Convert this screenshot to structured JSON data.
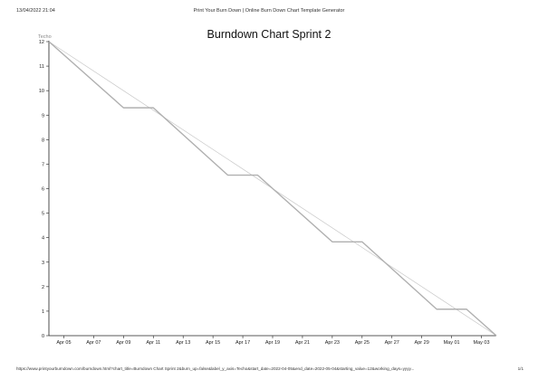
{
  "print_header": {
    "date": "13/04/2022 21:04",
    "title": "Print Your Burn Down | Online Burn Down Chart Template Generator"
  },
  "print_footer": {
    "url": "https://www.printyourburndown.com/burndown.html?chart_title=Burndown Chart Sprint 2&burn_up=false&label_y_axis=Techo&start_date=2022-04-05&end_date=2022-05-04&starting_value=12&working_days=yyyy...",
    "page": "1/1"
  },
  "chart_data": {
    "type": "line",
    "title": "Burndown Chart Sprint 2",
    "ylabel": "Techo",
    "xlabel": "",
    "ylim": [
      0,
      12
    ],
    "yticks": [
      0,
      1,
      2,
      3,
      4,
      5,
      6,
      7,
      8,
      9,
      10,
      11,
      12
    ],
    "x_start": "2022-04-04",
    "x_end": "2022-05-04",
    "xticks": [
      "Apr 05",
      "Apr 07",
      "Apr 09",
      "Apr 11",
      "Apr 13",
      "Apr 15",
      "Apr 17",
      "Apr 19",
      "Apr 21",
      "Apr 23",
      "Apr 25",
      "Apr 27",
      "Apr 29",
      "May 01",
      "May 03"
    ],
    "xtick_dates": [
      "2022-04-05",
      "2022-04-07",
      "2022-04-09",
      "2022-04-11",
      "2022-04-13",
      "2022-04-15",
      "2022-04-17",
      "2022-04-19",
      "2022-04-21",
      "2022-04-23",
      "2022-04-25",
      "2022-04-27",
      "2022-04-29",
      "2022-05-01",
      "2022-05-03"
    ],
    "series": [
      {
        "role": "ideal",
        "color": "#c8c8c8",
        "points": [
          [
            "2022-04-04",
            12
          ],
          [
            "2022-05-04",
            0
          ]
        ]
      },
      {
        "role": "actual",
        "color": "#b0b0b0",
        "points": [
          [
            "2022-04-04",
            12
          ],
          [
            "2022-04-09",
            9.3
          ],
          [
            "2022-04-11",
            9.3
          ],
          [
            "2022-04-16",
            6.55
          ],
          [
            "2022-04-18",
            6.55
          ],
          [
            "2022-04-23",
            3.83
          ],
          [
            "2022-04-25",
            3.83
          ],
          [
            "2022-04-30",
            1.08
          ],
          [
            "2022-05-02",
            1.08
          ],
          [
            "2022-05-04",
            0
          ]
        ]
      }
    ]
  }
}
